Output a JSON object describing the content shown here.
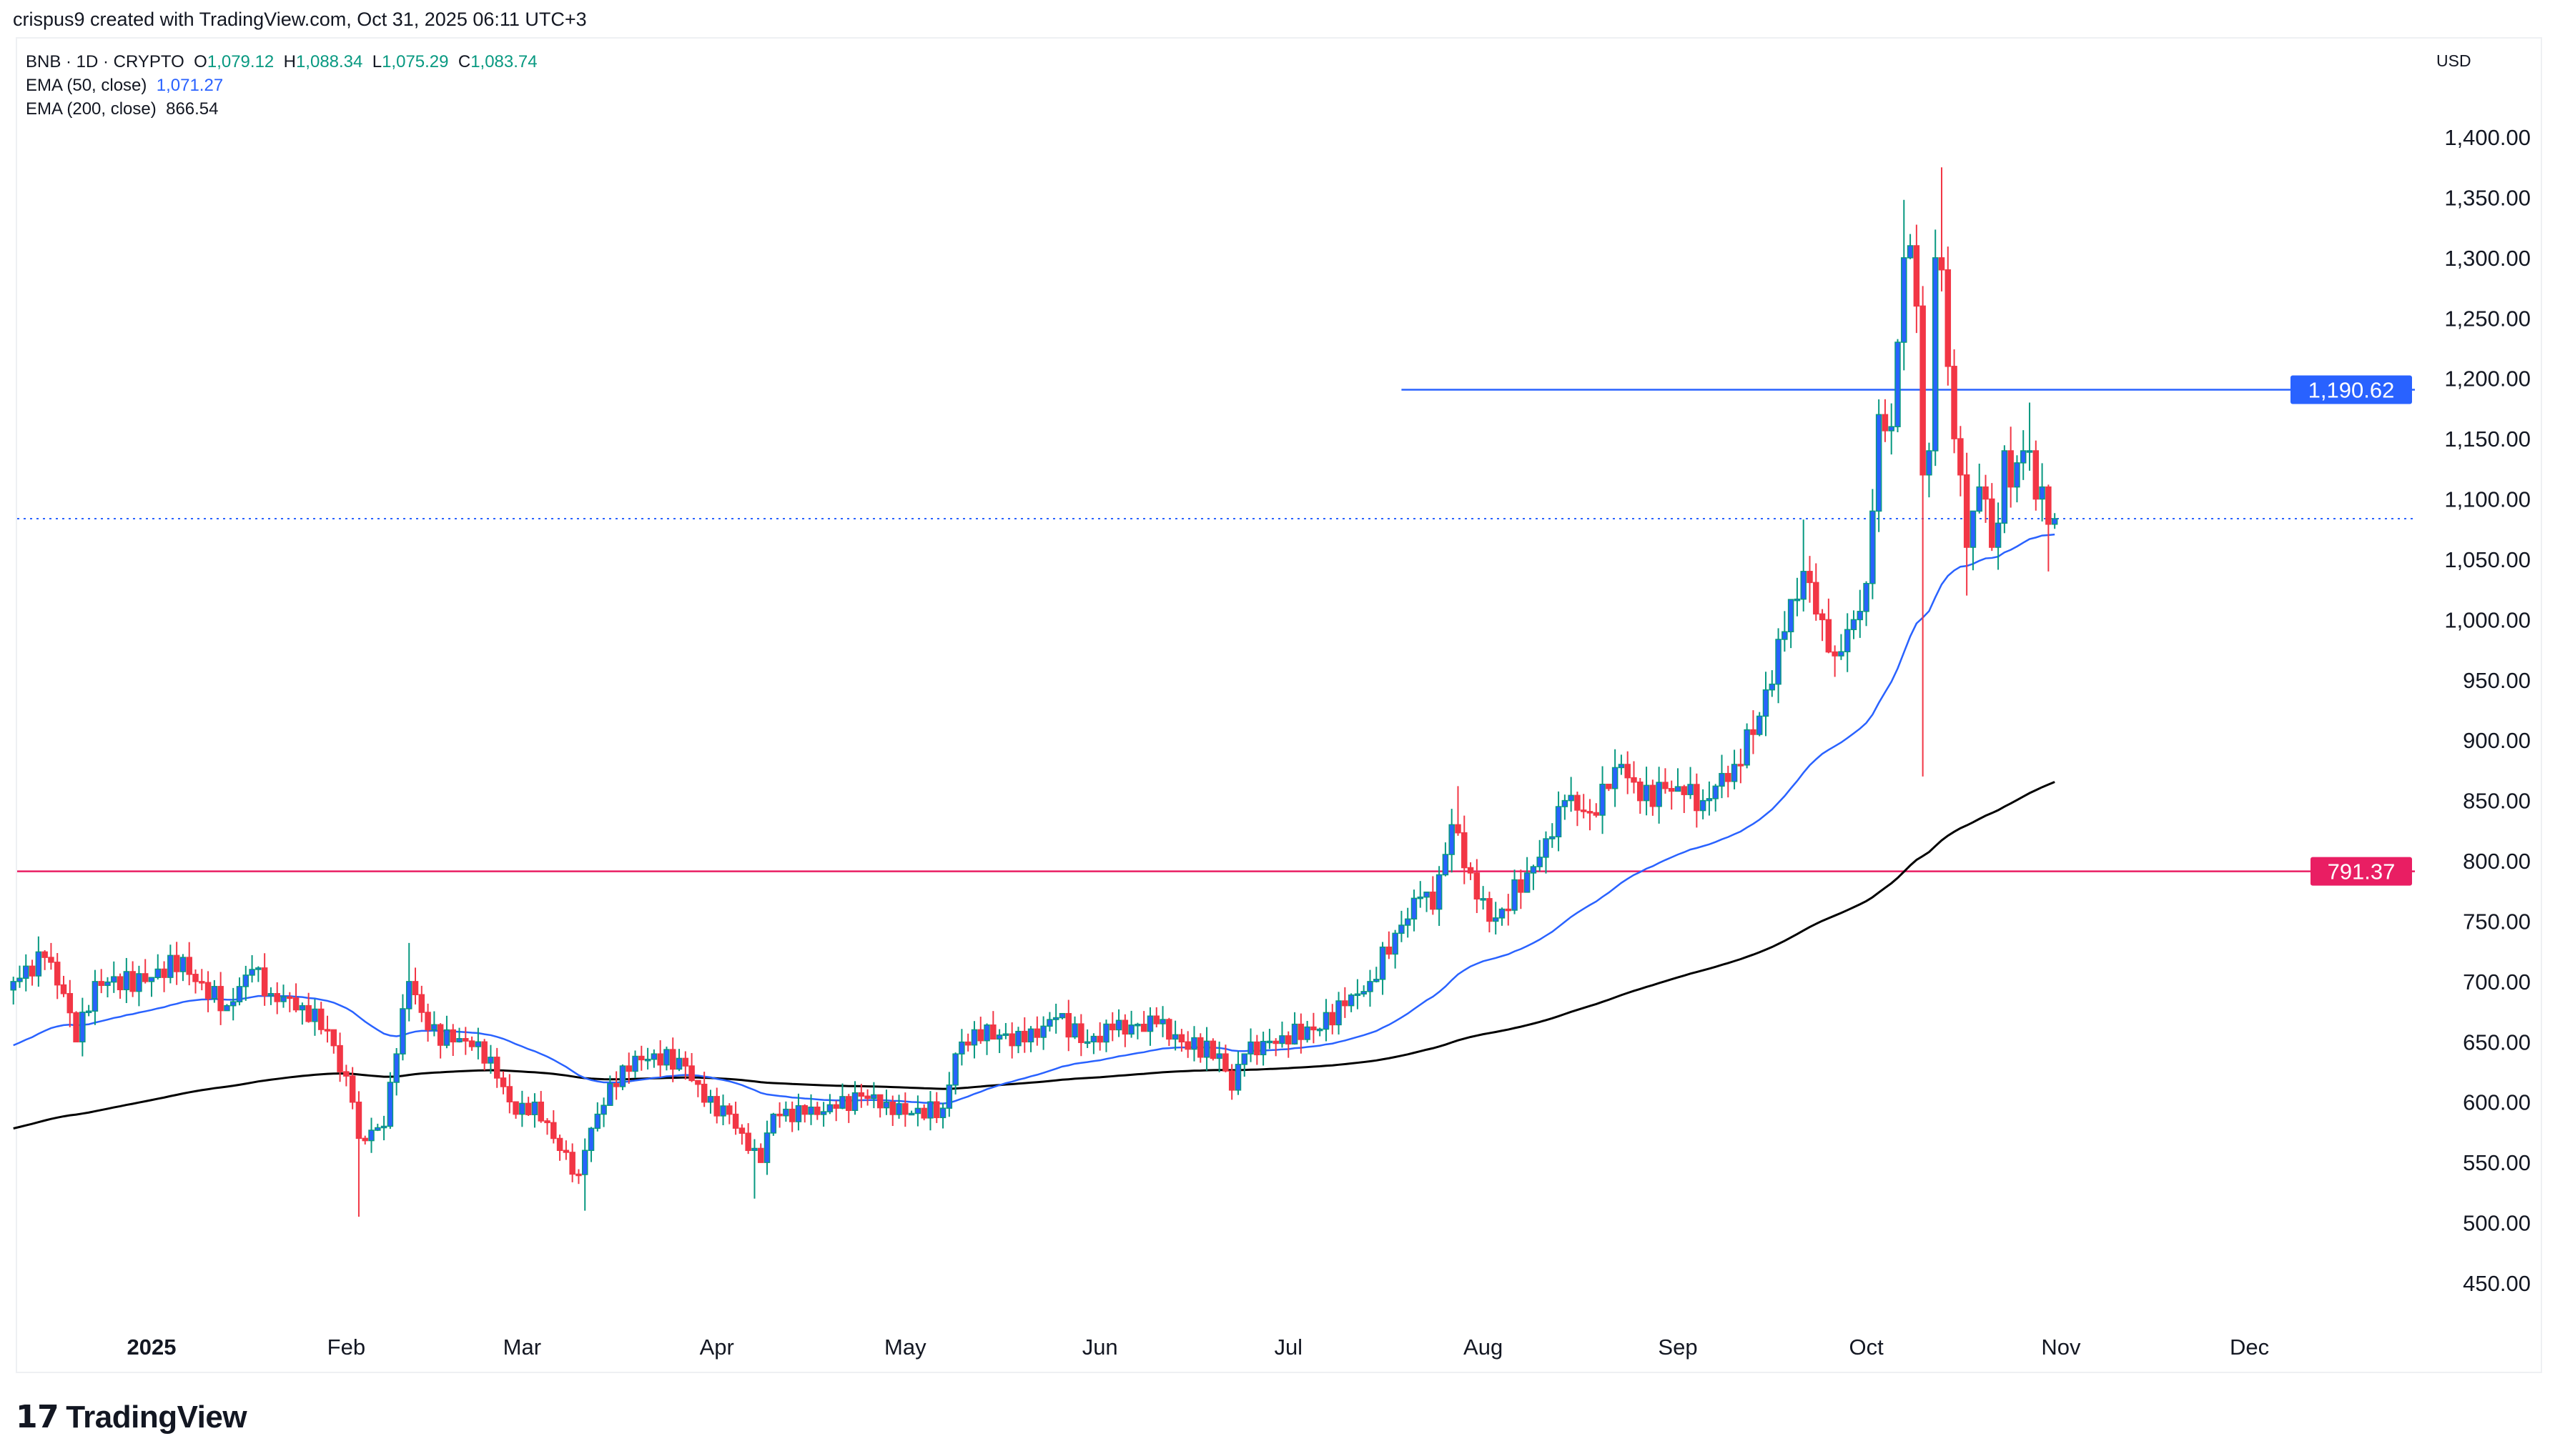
{
  "credit": "crispus9 created with TradingView.com, Oct 31, 2025 06:11 UTC+3",
  "legend": {
    "symbol": "BNB · 1D · CRYPTO",
    "open_label": "O",
    "open": "1,079.12",
    "high_label": "H",
    "high": "1,088.34",
    "low_label": "L",
    "low": "1,075.29",
    "close_label": "C",
    "close": "1,083.74",
    "ema50_label": "EMA (50, close)",
    "ema50_value": "1,071.27",
    "ema200_label": "EMA (200, close)",
    "ema200_value": "866.54"
  },
  "currency": "USD",
  "logo": {
    "text": "TradingView",
    "icon": "tradingview-logo-icon"
  },
  "colors": {
    "up_body": "#2962ff",
    "up_wick": "#089981",
    "down": "#f23645",
    "ema50": "#2962ff",
    "ema200": "#000000",
    "resistance": "#2962ff",
    "support": "#e91e63"
  },
  "chart_data": {
    "type": "candlestick",
    "title": "",
    "ylim": [
      420,
      1420
    ],
    "y_ticks": [
      "450.00",
      "500.00",
      "550.00",
      "600.00",
      "650.00",
      "700.00",
      "750.00",
      "800.00",
      "850.00",
      "900.00",
      "950.00",
      "1,000.00",
      "1,050.00",
      "1,100.00",
      "1,150.00",
      "1,200.00",
      "1,250.00",
      "1,300.00",
      "1,350.00",
      "1,400.00"
    ],
    "x_ticks": [
      {
        "label": "2025",
        "date": "2025-01-01",
        "bold": true
      },
      {
        "label": "Feb",
        "date": "2025-02-01"
      },
      {
        "label": "Mar",
        "date": "2025-03-01"
      },
      {
        "label": "Apr",
        "date": "2025-04-01"
      },
      {
        "label": "May",
        "date": "2025-05-01"
      },
      {
        "label": "Jun",
        "date": "2025-06-01"
      },
      {
        "label": "Jul",
        "date": "2025-07-01"
      },
      {
        "label": "Aug",
        "date": "2025-08-01"
      },
      {
        "label": "Sep",
        "date": "2025-09-01"
      },
      {
        "label": "Oct",
        "date": "2025-10-01"
      },
      {
        "label": "Nov",
        "date": "2025-11-01"
      },
      {
        "label": "Dec",
        "date": "2025-12-01"
      }
    ],
    "approx_daily_close_path": [
      [
        "2024-12-10",
        700
      ],
      [
        "2024-12-15",
        720
      ],
      [
        "2024-12-18",
        690
      ],
      [
        "2024-12-20",
        650
      ],
      [
        "2024-12-23",
        700
      ],
      [
        "2024-12-31",
        700
      ],
      [
        "2025-01-06",
        720
      ],
      [
        "2025-01-08",
        700
      ],
      [
        "2025-01-13",
        680
      ],
      [
        "2025-01-17",
        710
      ],
      [
        "2025-01-20",
        690
      ],
      [
        "2025-01-25",
        680
      ],
      [
        "2025-01-29",
        660
      ],
      [
        "2025-02-02",
        600
      ],
      [
        "2025-02-03",
        570
      ],
      [
        "2025-02-07",
        580
      ],
      [
        "2025-02-09",
        640
      ],
      [
        "2025-02-11",
        700
      ],
      [
        "2025-02-14",
        660
      ],
      [
        "2025-02-18",
        650
      ],
      [
        "2025-02-22",
        650
      ],
      [
        "2025-02-25",
        620
      ],
      [
        "2025-02-28",
        590
      ],
      [
        "2025-03-03",
        600
      ],
      [
        "2025-03-07",
        560
      ],
      [
        "2025-03-10",
        540
      ],
      [
        "2025-03-11",
        560
      ],
      [
        "2025-03-13",
        590
      ],
      [
        "2025-03-17",
        630
      ],
      [
        "2025-03-22",
        640
      ],
      [
        "2025-03-27",
        630
      ],
      [
        "2025-03-30",
        600
      ],
      [
        "2025-04-03",
        590
      ],
      [
        "2025-04-06",
        560
      ],
      [
        "2025-04-08",
        550
      ],
      [
        "2025-04-10",
        590
      ],
      [
        "2025-04-15",
        590
      ],
      [
        "2025-04-20",
        595
      ],
      [
        "2025-04-24",
        605
      ],
      [
        "2025-04-28",
        600
      ],
      [
        "2025-05-01",
        590
      ],
      [
        "2025-05-07",
        595
      ],
      [
        "2025-05-09",
        640
      ],
      [
        "2025-05-12",
        660
      ],
      [
        "2025-05-20",
        650
      ],
      [
        "2025-05-25",
        670
      ],
      [
        "2025-05-30",
        650
      ],
      [
        "2025-06-03",
        660
      ],
      [
        "2025-06-10",
        665
      ],
      [
        "2025-06-14",
        650
      ],
      [
        "2025-06-20",
        640
      ],
      [
        "2025-06-22",
        610
      ],
      [
        "2025-06-24",
        640
      ],
      [
        "2025-06-30",
        655
      ],
      [
        "2025-07-05",
        660
      ],
      [
        "2025-07-10",
        680
      ],
      [
        "2025-07-14",
        700
      ],
      [
        "2025-07-18",
        740
      ],
      [
        "2025-07-22",
        770
      ],
      [
        "2025-07-24",
        760
      ],
      [
        "2025-07-27",
        830
      ],
      [
        "2025-07-30",
        790
      ],
      [
        "2025-08-02",
        750
      ],
      [
        "2025-08-04",
        760
      ],
      [
        "2025-08-08",
        790
      ],
      [
        "2025-08-12",
        820
      ],
      [
        "2025-08-14",
        850
      ],
      [
        "2025-08-18",
        840
      ],
      [
        "2025-08-21",
        860
      ],
      [
        "2025-08-23",
        880
      ],
      [
        "2025-08-26",
        850
      ],
      [
        "2025-08-30",
        860
      ],
      [
        "2025-09-02",
        855
      ],
      [
        "2025-09-05",
        850
      ],
      [
        "2025-09-10",
        880
      ],
      [
        "2025-09-14",
        920
      ],
      [
        "2025-09-18",
        990
      ],
      [
        "2025-09-21",
        1040
      ],
      [
        "2025-09-24",
        1000
      ],
      [
        "2025-09-26",
        970
      ],
      [
        "2025-09-29",
        1000
      ],
      [
        "2025-10-01",
        1030
      ],
      [
        "2025-10-02",
        1090
      ],
      [
        "2025-10-03",
        1170
      ],
      [
        "2025-10-05",
        1160
      ],
      [
        "2025-10-06",
        1230
      ],
      [
        "2025-10-07",
        1300
      ],
      [
        "2025-10-08",
        1310
      ],
      [
        "2025-10-09",
        1260
      ],
      [
        "2025-10-10",
        1120
      ],
      [
        "2025-10-11",
        1140
      ],
      [
        "2025-10-12",
        1300
      ],
      [
        "2025-10-13",
        1290
      ],
      [
        "2025-10-14",
        1210
      ],
      [
        "2025-10-15",
        1150
      ],
      [
        "2025-10-16",
        1120
      ],
      [
        "2025-10-17",
        1060
      ],
      [
        "2025-10-18",
        1090
      ],
      [
        "2025-10-19",
        1110
      ],
      [
        "2025-10-20",
        1100
      ],
      [
        "2025-10-21",
        1060
      ],
      [
        "2025-10-22",
        1080
      ],
      [
        "2025-10-23",
        1140
      ],
      [
        "2025-10-24",
        1110
      ],
      [
        "2025-10-25",
        1130
      ],
      [
        "2025-10-26",
        1140
      ],
      [
        "2025-10-27",
        1140
      ],
      [
        "2025-10-28",
        1100
      ],
      [
        "2025-10-29",
        1110
      ],
      [
        "2025-10-30",
        1079.12
      ],
      [
        "2025-10-31",
        1083.74
      ]
    ],
    "notable_wicks": [
      {
        "date": "2025-02-03",
        "low": 505
      },
      {
        "date": "2025-02-11",
        "high": 732
      },
      {
        "date": "2025-03-11",
        "low": 510
      },
      {
        "date": "2025-04-07",
        "low": 520
      },
      {
        "date": "2025-06-22",
        "low": 602
      },
      {
        "date": "2025-07-28",
        "high": 862
      },
      {
        "date": "2025-09-21",
        "high": 1083
      },
      {
        "date": "2025-10-07",
        "high": 1348
      },
      {
        "date": "2025-10-10",
        "low": 870
      },
      {
        "date": "2025-10-13",
        "high": 1375
      },
      {
        "date": "2025-10-17",
        "low": 1020
      },
      {
        "date": "2025-10-27",
        "high": 1180
      },
      {
        "date": "2025-10-30",
        "low": 1040
      },
      {
        "date": "2025-10-31",
        "high": 1088.34,
        "low": 1075.29
      }
    ],
    "ema50_start": 645,
    "ema200_start": 577,
    "lines": [
      {
        "name": "resistance",
        "value": 1190.62,
        "label": "1,190.62",
        "from": "2025-07-19"
      },
      {
        "name": "support",
        "value": 791.37,
        "label": "791.37"
      }
    ],
    "last_price": 1083.74
  }
}
